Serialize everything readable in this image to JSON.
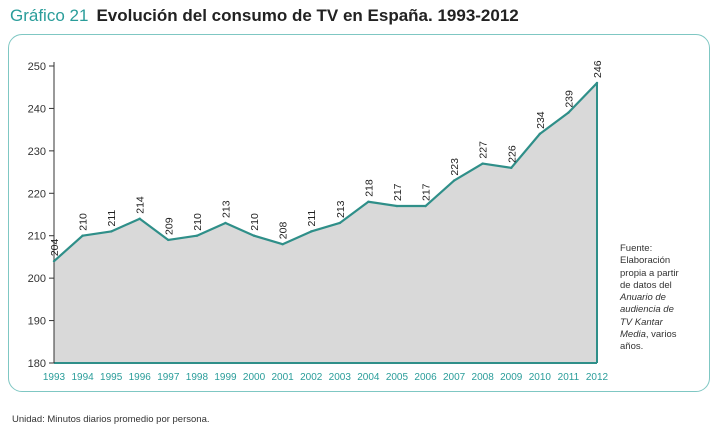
{
  "header": {
    "label": "Gráfico 21",
    "title": "Evolución del consumo de TV en España. 1993-2012"
  },
  "source_note": {
    "line1": "Fuente:",
    "line2": "Elaboración",
    "line3": "propia a partir",
    "line4": "de datos del",
    "line5": "Anuario de",
    "line6": "audiencia de",
    "line7": "TV Kantar",
    "line8": "Media",
    "line8_rest": ", varios",
    "line9": "años."
  },
  "unit_note": "Unidad: Minutos diarios promedio por persona.",
  "colors": {
    "accent": "#2a9d9a",
    "line": "#2f8f89",
    "area": "#d9d9d9",
    "frame": "#7fc7c3"
  },
  "chart_data": {
    "type": "area",
    "title": "Evolución del consumo de TV en España. 1993-2012",
    "xlabel": "",
    "ylabel": "",
    "x": [
      "1993",
      "1994",
      "1995",
      "1996",
      "1997",
      "1998",
      "1999",
      "2000",
      "2001",
      "2002",
      "2003",
      "2004",
      "2005",
      "2006",
      "2007",
      "2008",
      "2009",
      "2010",
      "2011",
      "2012"
    ],
    "values": [
      204,
      210,
      211,
      214,
      209,
      210,
      213,
      210,
      208,
      211,
      213,
      218,
      217,
      217,
      223,
      227,
      226,
      234,
      239,
      246
    ],
    "yticks": [
      180,
      190,
      200,
      210,
      220,
      230,
      240,
      250
    ],
    "ylim": [
      180,
      250
    ],
    "grid": false,
    "data_labels": true
  }
}
